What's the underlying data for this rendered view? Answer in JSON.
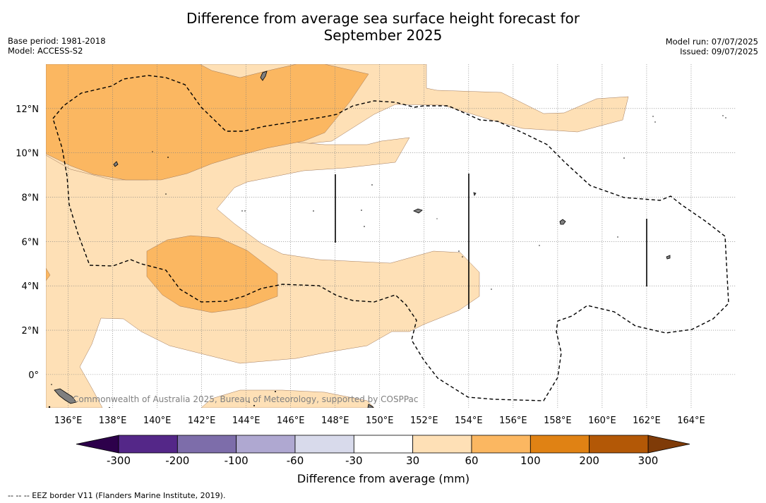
{
  "title_line1": "Difference from average sea surface height forecast for",
  "title_line2": "September 2025",
  "meta_left": [
    "Base period: 1981-2018",
    "Model: ACCESS-S2"
  ],
  "meta_right": [
    "Model run: 07/07/2025",
    "Issued: 09/07/2025"
  ],
  "map": {
    "lon_range": [
      135,
      166
    ],
    "lat_range": [
      -1.5,
      14
    ],
    "lon_ticks": [
      "136°E",
      "138°E",
      "140°E",
      "142°E",
      "144°E",
      "146°E",
      "148°E",
      "150°E",
      "152°E",
      "154°E",
      "156°E",
      "158°E",
      "160°E",
      "162°E",
      "164°E"
    ],
    "lat_ticks": [
      "0°",
      "2°N",
      "4°N",
      "6°N",
      "8°N",
      "10°N",
      "12°N"
    ],
    "gridlines": true
  },
  "colorbar": {
    "title": "Difference from average (mm)",
    "ticks": [
      "-300",
      "-200",
      "-100",
      "-60",
      "-30",
      "30",
      "60",
      "100",
      "200",
      "300"
    ],
    "colors": [
      "#542788",
      "#7d6daa",
      "#afa8d1",
      "#d8daeb",
      "#ffffff",
      "#fee0b6",
      "#fbb761",
      "#e08214",
      "#b35806"
    ],
    "extend_low_color": "#2d004b",
    "extend_high_color": "#7f3b08"
  },
  "copyright": "Commonwealth of Australia 2025, Bureau of Meteorology, supported by COSPPac",
  "footnote": "--  --  -- EEZ border V11 (Flanders Marine Institute, 2019)."
}
